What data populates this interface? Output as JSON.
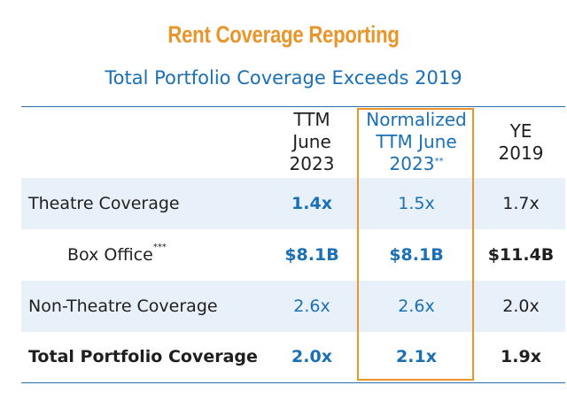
{
  "title": "Rent Coverage Reporting",
  "subtitle": "Total Portfolio Coverage Exceeds 2019",
  "columns": [
    {
      "line1": "TTM",
      "line2": "June",
      "line3": "2023",
      "note": ""
    },
    {
      "line1": "Normalized",
      "line2": "TTM June",
      "line3": "2023",
      "note": "**"
    },
    {
      "line1": "YE",
      "line2": "2019",
      "line3": "",
      "note": ""
    }
  ],
  "rows": [
    {
      "label": "Theatre Coverage",
      "note": "",
      "values": [
        "1.4x",
        "1.5x",
        "1.7x"
      ]
    },
    {
      "label": "Box Office",
      "note": "***",
      "values": [
        "$8.1B",
        "$8.1B",
        "$11.4B"
      ]
    },
    {
      "label": "Non-Theatre Coverage",
      "note": "",
      "values": [
        "2.6x",
        "2.6x",
        "2.0x"
      ]
    },
    {
      "label": "Total Portfolio Coverage",
      "note": "",
      "values": [
        "2.0x",
        "2.1x",
        "1.9x"
      ]
    }
  ],
  "colors": {
    "accent_orange": "#e8952a",
    "accent_blue": "#1a6fb5",
    "row_shade": "#e8f1f9"
  }
}
